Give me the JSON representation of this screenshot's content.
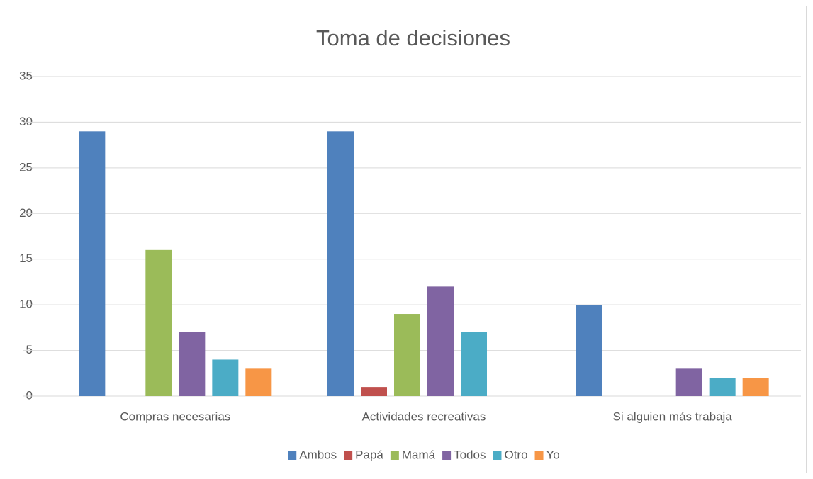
{
  "chart_data": {
    "type": "bar",
    "title": "Toma de decisiones",
    "categories": [
      "Compras necesarias",
      "Actividades recreativas",
      "Si alguien más trabaja"
    ],
    "series": [
      {
        "name": "Ambos",
        "color": "#4f81bd",
        "values": [
          29,
          29,
          10
        ]
      },
      {
        "name": "Papá",
        "color": "#c0504d",
        "values": [
          0,
          1,
          0
        ]
      },
      {
        "name": "Mamá",
        "color": "#9bbb59",
        "values": [
          16,
          9,
          0
        ]
      },
      {
        "name": "Todos",
        "color": "#8064a2",
        "values": [
          7,
          12,
          3
        ]
      },
      {
        "name": "Otro",
        "color": "#4bacc6",
        "values": [
          4,
          7,
          2
        ]
      },
      {
        "name": "Yo",
        "color": "#f79646",
        "values": [
          3,
          0,
          2
        ]
      }
    ],
    "ylim": [
      0,
      35
    ],
    "yticks": [
      0,
      5,
      10,
      15,
      20,
      25,
      30,
      35
    ],
    "grid": true,
    "legend": "bottom"
  }
}
